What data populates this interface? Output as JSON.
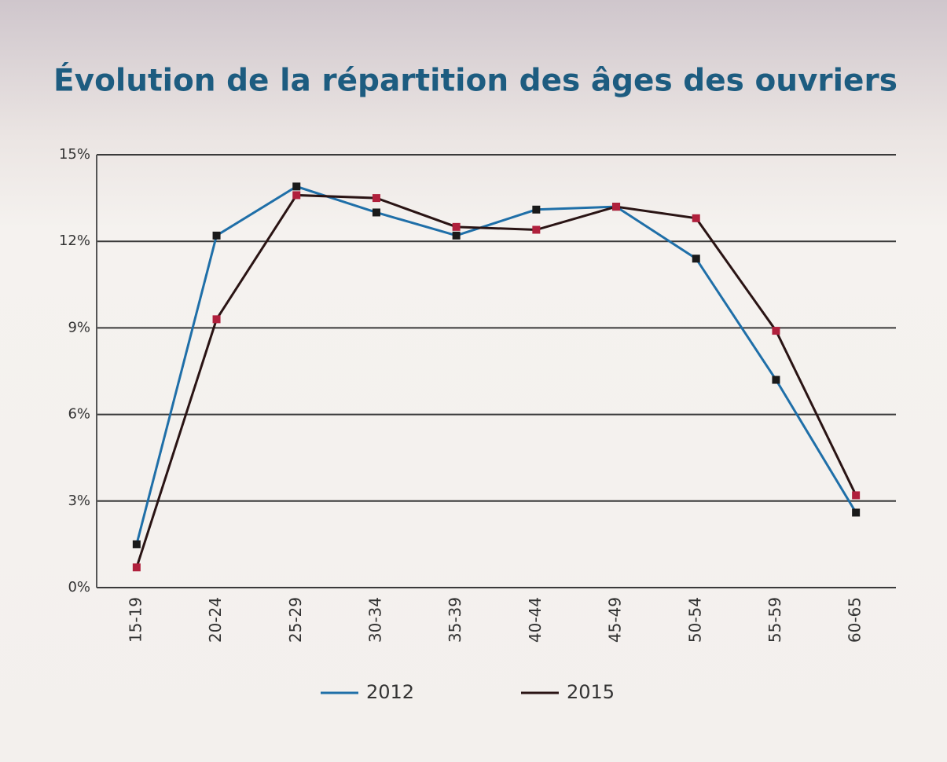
{
  "chart_data": {
    "type": "line",
    "title": "Évolution de la répartition des âges des ouvriers",
    "categories": [
      "15-19",
      "20-24",
      "25-29",
      "30-34",
      "35-39",
      "40-44",
      "45-49",
      "50-54",
      "55-59",
      "60-65"
    ],
    "series": [
      {
        "name": "2012",
        "color": "#1f6fa8",
        "marker_color": "#1a1a1a",
        "values": [
          1.5,
          12.2,
          13.9,
          13.0,
          12.2,
          13.1,
          13.2,
          11.4,
          7.2,
          2.6
        ]
      },
      {
        "name": "2015",
        "color": "#2a1414",
        "marker_color": "#b0203c",
        "values": [
          0.7,
          9.3,
          13.6,
          13.5,
          12.5,
          12.4,
          13.2,
          12.8,
          8.9,
          3.2
        ]
      }
    ],
    "ylim": [
      0,
      15
    ],
    "yticks": [
      {
        "value": 0,
        "label": "0%"
      },
      {
        "value": 3,
        "label": "3%"
      },
      {
        "value": 6,
        "label": "6%"
      },
      {
        "value": 9,
        "label": "9%"
      },
      {
        "value": 12,
        "label": "12%"
      },
      {
        "value": 15,
        "label": "15%"
      }
    ],
    "grid": true,
    "legend": "bottom"
  }
}
